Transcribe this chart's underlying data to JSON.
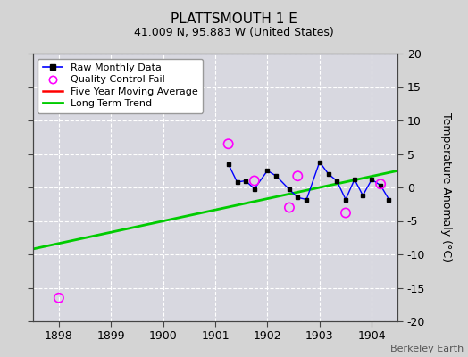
{
  "title": "PLATTSMOUTH 1 E",
  "subtitle": "41.009 N, 95.883 W (United States)",
  "ylabel_right": "Temperature Anomaly (°C)",
  "credit": "Berkeley Earth",
  "xlim": [
    1897.5,
    1904.5
  ],
  "ylim": [
    -20,
    20
  ],
  "yticks": [
    -20,
    -15,
    -10,
    -5,
    0,
    5,
    10,
    15,
    20
  ],
  "xticks": [
    1898,
    1899,
    1900,
    1901,
    1902,
    1903,
    1904
  ],
  "bg_color": "#d4d4d4",
  "plot_bg_color": "#d8d8e0",
  "raw_x": [
    1901.25,
    1901.42,
    1901.58,
    1901.75,
    1902.0,
    1902.17,
    1902.42,
    1902.58,
    1902.75,
    1903.0,
    1903.17,
    1903.33,
    1903.5,
    1903.67,
    1903.83,
    1904.0,
    1904.17,
    1904.33
  ],
  "raw_y": [
    3.5,
    0.8,
    1.0,
    -0.2,
    2.5,
    1.7,
    -0.3,
    -1.5,
    -1.8,
    3.8,
    2.0,
    1.0,
    -1.8,
    1.2,
    -1.2,
    1.2,
    0.3,
    -1.8
  ],
  "qc_fail_x": [
    1898.0,
    1901.25,
    1901.75,
    1902.42,
    1902.58,
    1903.5,
    1904.17
  ],
  "qc_fail_y": [
    -16.5,
    6.5,
    1.0,
    -3.0,
    1.7,
    -3.8,
    0.5
  ],
  "trend_x": [
    1897.5,
    1904.5
  ],
  "trend_y": [
    -9.2,
    2.5
  ],
  "raw_color": "#0000ff",
  "raw_marker_color": "#000000",
  "qc_color": "#ff00ff",
  "trend_color": "#00cc00",
  "ma_color": "#ff0000",
  "grid_color": "#ffffff",
  "legend_loc": "upper left",
  "title_fontsize": 11,
  "subtitle_fontsize": 9,
  "tick_labelsize": 9,
  "ylabel_fontsize": 9
}
